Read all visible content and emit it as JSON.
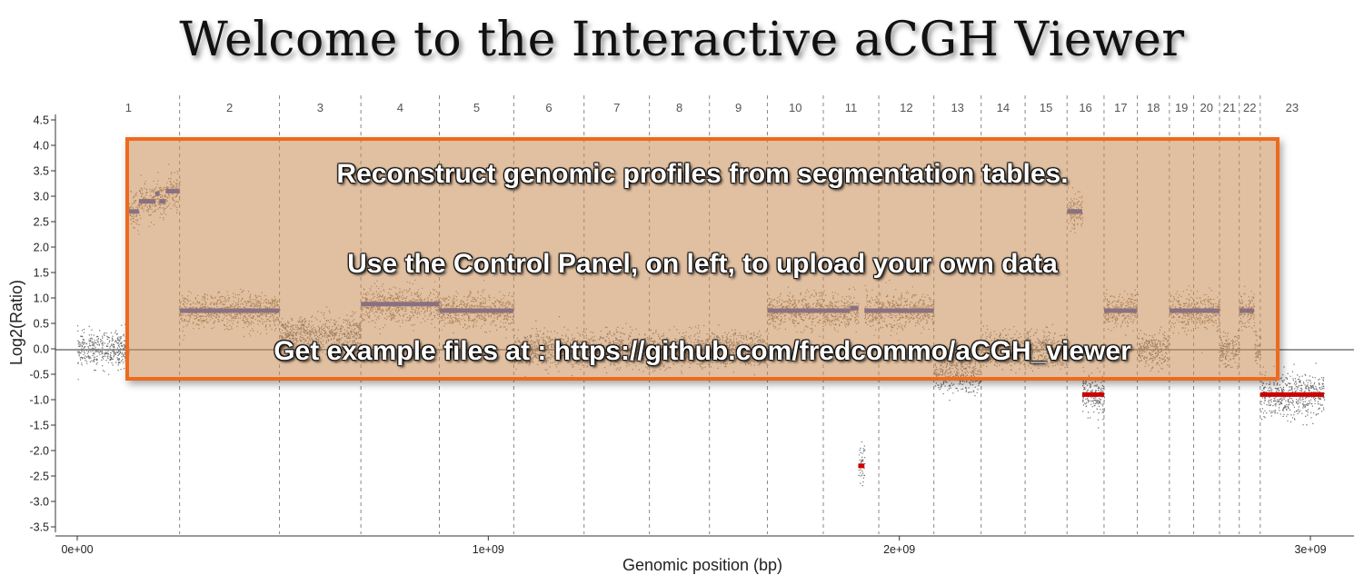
{
  "page": {
    "title": "Welcome to the Interactive aCGH Viewer"
  },
  "banner": {
    "lines": [
      "Reconstruct genomic profiles from segmentation tables.",
      "Use the Control Panel, on left, to upload your own data",
      "Get example files at : https://github.com/fredcommo/aCGH_viewer"
    ],
    "border_color": "#ee6a1c",
    "fill_color": "#c88c55"
  },
  "chart_data": {
    "type": "scatter",
    "xlabel": "Genomic position (bp)",
    "ylabel": "Log2(Ratio)",
    "xlim": [
      0,
      3100000000
    ],
    "ylim": [
      -3.5,
      4.5
    ],
    "x_ticks": [
      0,
      1000000000,
      2000000000,
      3000000000
    ],
    "x_tick_labels": [
      "0e+00",
      "1e+09",
      "2e+09",
      "3e+09"
    ],
    "y_ticks": [
      -3.5,
      -3.0,
      -2.5,
      -2.0,
      -1.5,
      -1.0,
      -0.5,
      0.0,
      0.5,
      1.0,
      1.5,
      2.0,
      2.5,
      3.0,
      3.5,
      4.0,
      4.5
    ],
    "y_tick_labels": [
      "-3.5",
      "-3.0",
      "-2.5",
      "-2.0",
      "-1.5",
      "-1.0",
      "-0.5",
      "0.0",
      "0.5",
      "1.0",
      "1.5",
      "2.0",
      "2.5",
      "3.0",
      "3.5",
      "4.0",
      "4.5"
    ],
    "grid": false,
    "colors": {
      "gain": "#3f51b5",
      "loss": "#cc0000",
      "gain_points": "#7a6040",
      "neutral_points": "#555555",
      "loss_points": "#555555"
    },
    "chromosomes": [
      {
        "label": "1",
        "start": 0,
        "end": 249000000
      },
      {
        "label": "2",
        "start": 249000000,
        "end": 492000000
      },
      {
        "label": "3",
        "start": 492000000,
        "end": 690000000
      },
      {
        "label": "4",
        "start": 690000000,
        "end": 881000000
      },
      {
        "label": "5",
        "start": 881000000,
        "end": 1062000000
      },
      {
        "label": "6",
        "start": 1062000000,
        "end": 1233000000
      },
      {
        "label": "7",
        "start": 1233000000,
        "end": 1392000000
      },
      {
        "label": "8",
        "start": 1392000000,
        "end": 1538000000
      },
      {
        "label": "9",
        "start": 1538000000,
        "end": 1679000000
      },
      {
        "label": "10",
        "start": 1679000000,
        "end": 1815000000
      },
      {
        "label": "11",
        "start": 1815000000,
        "end": 1950000000
      },
      {
        "label": "12",
        "start": 1950000000,
        "end": 2084000000
      },
      {
        "label": "13",
        "start": 2084000000,
        "end": 2199000000
      },
      {
        "label": "14",
        "start": 2199000000,
        "end": 2306000000
      },
      {
        "label": "15",
        "start": 2306000000,
        "end": 2408000000
      },
      {
        "label": "16",
        "start": 2408000000,
        "end": 2498000000
      },
      {
        "label": "17",
        "start": 2498000000,
        "end": 2579000000
      },
      {
        "label": "18",
        "start": 2579000000,
        "end": 2657000000
      },
      {
        "label": "19",
        "start": 2657000000,
        "end": 2716000000
      },
      {
        "label": "20",
        "start": 2716000000,
        "end": 2779000000
      },
      {
        "label": "21",
        "start": 2779000000,
        "end": 2827000000
      },
      {
        "label": "22",
        "start": 2827000000,
        "end": 2878000000
      },
      {
        "label": "23",
        "start": 2878000000,
        "end": 3033000000
      }
    ],
    "segments": [
      {
        "chrom": "1",
        "start": 0,
        "end": 125000000,
        "value": 0.0,
        "status": "neutral"
      },
      {
        "chrom": "1",
        "start": 125000000,
        "end": 150000000,
        "value": 2.7,
        "status": "gain"
      },
      {
        "chrom": "1",
        "start": 150000000,
        "end": 190000000,
        "value": 2.9,
        "status": "gain"
      },
      {
        "chrom": "1",
        "start": 190000000,
        "end": 200000000,
        "value": 3.05,
        "status": "gain"
      },
      {
        "chrom": "1",
        "start": 200000000,
        "end": 215000000,
        "value": 2.9,
        "status": "gain"
      },
      {
        "chrom": "1",
        "start": 215000000,
        "end": 249000000,
        "value": 3.1,
        "status": "gain"
      },
      {
        "chrom": "2",
        "start": 249000000,
        "end": 492000000,
        "value": 0.75,
        "status": "gain"
      },
      {
        "chrom": "3",
        "start": 492000000,
        "end": 690000000,
        "value": 0.3,
        "status": "neutral"
      },
      {
        "chrom": "4",
        "start": 690000000,
        "end": 881000000,
        "value": 0.88,
        "status": "gain"
      },
      {
        "chrom": "5",
        "start": 881000000,
        "end": 1062000000,
        "value": 0.75,
        "status": "gain"
      },
      {
        "chrom": "6",
        "start": 1062000000,
        "end": 1233000000,
        "value": 0.0,
        "status": "neutral"
      },
      {
        "chrom": "7",
        "start": 1233000000,
        "end": 1392000000,
        "value": 0.0,
        "status": "neutral"
      },
      {
        "chrom": "8",
        "start": 1392000000,
        "end": 1538000000,
        "value": 0.0,
        "status": "neutral"
      },
      {
        "chrom": "9",
        "start": 1538000000,
        "end": 1679000000,
        "value": 0.0,
        "status": "neutral"
      },
      {
        "chrom": "10",
        "start": 1679000000,
        "end": 1815000000,
        "value": 0.75,
        "status": "gain"
      },
      {
        "chrom": "11",
        "start": 1815000000,
        "end": 1880000000,
        "value": 0.75,
        "status": "gain"
      },
      {
        "chrom": "11",
        "start": 1880000000,
        "end": 1900000000,
        "value": 0.8,
        "status": "gain"
      },
      {
        "chrom": "11",
        "start": 1900000000,
        "end": 1915000000,
        "value": -2.3,
        "status": "loss"
      },
      {
        "chrom": "11",
        "start": 1915000000,
        "end": 1950000000,
        "value": 0.75,
        "status": "gain"
      },
      {
        "chrom": "12",
        "start": 1950000000,
        "end": 2084000000,
        "value": 0.75,
        "status": "gain"
      },
      {
        "chrom": "13",
        "start": 2084000000,
        "end": 2199000000,
        "value": -0.5,
        "status": "neutral"
      },
      {
        "chrom": "14",
        "start": 2199000000,
        "end": 2306000000,
        "value": 0.0,
        "status": "neutral"
      },
      {
        "chrom": "15",
        "start": 2306000000,
        "end": 2408000000,
        "value": 0.0,
        "status": "neutral"
      },
      {
        "chrom": "16",
        "start": 2408000000,
        "end": 2445000000,
        "value": 2.7,
        "status": "gain"
      },
      {
        "chrom": "16",
        "start": 2445000000,
        "end": 2498000000,
        "value": -0.9,
        "status": "loss"
      },
      {
        "chrom": "17",
        "start": 2498000000,
        "end": 2579000000,
        "value": 0.75,
        "status": "gain"
      },
      {
        "chrom": "18",
        "start": 2579000000,
        "end": 2657000000,
        "value": 0.0,
        "status": "neutral"
      },
      {
        "chrom": "19",
        "start": 2657000000,
        "end": 2716000000,
        "value": 0.75,
        "status": "gain"
      },
      {
        "chrom": "20",
        "start": 2716000000,
        "end": 2779000000,
        "value": 0.75,
        "status": "gain"
      },
      {
        "chrom": "21",
        "start": 2779000000,
        "end": 2827000000,
        "value": 0.0,
        "status": "neutral"
      },
      {
        "chrom": "22",
        "start": 2827000000,
        "end": 2863000000,
        "value": 0.75,
        "status": "gain"
      },
      {
        "chrom": "22",
        "start": 2863000000,
        "end": 2878000000,
        "value": 0.0,
        "status": "neutral"
      },
      {
        "chrom": "23",
        "start": 2878000000,
        "end": 3033000000,
        "value": -0.9,
        "status": "loss"
      }
    ]
  }
}
